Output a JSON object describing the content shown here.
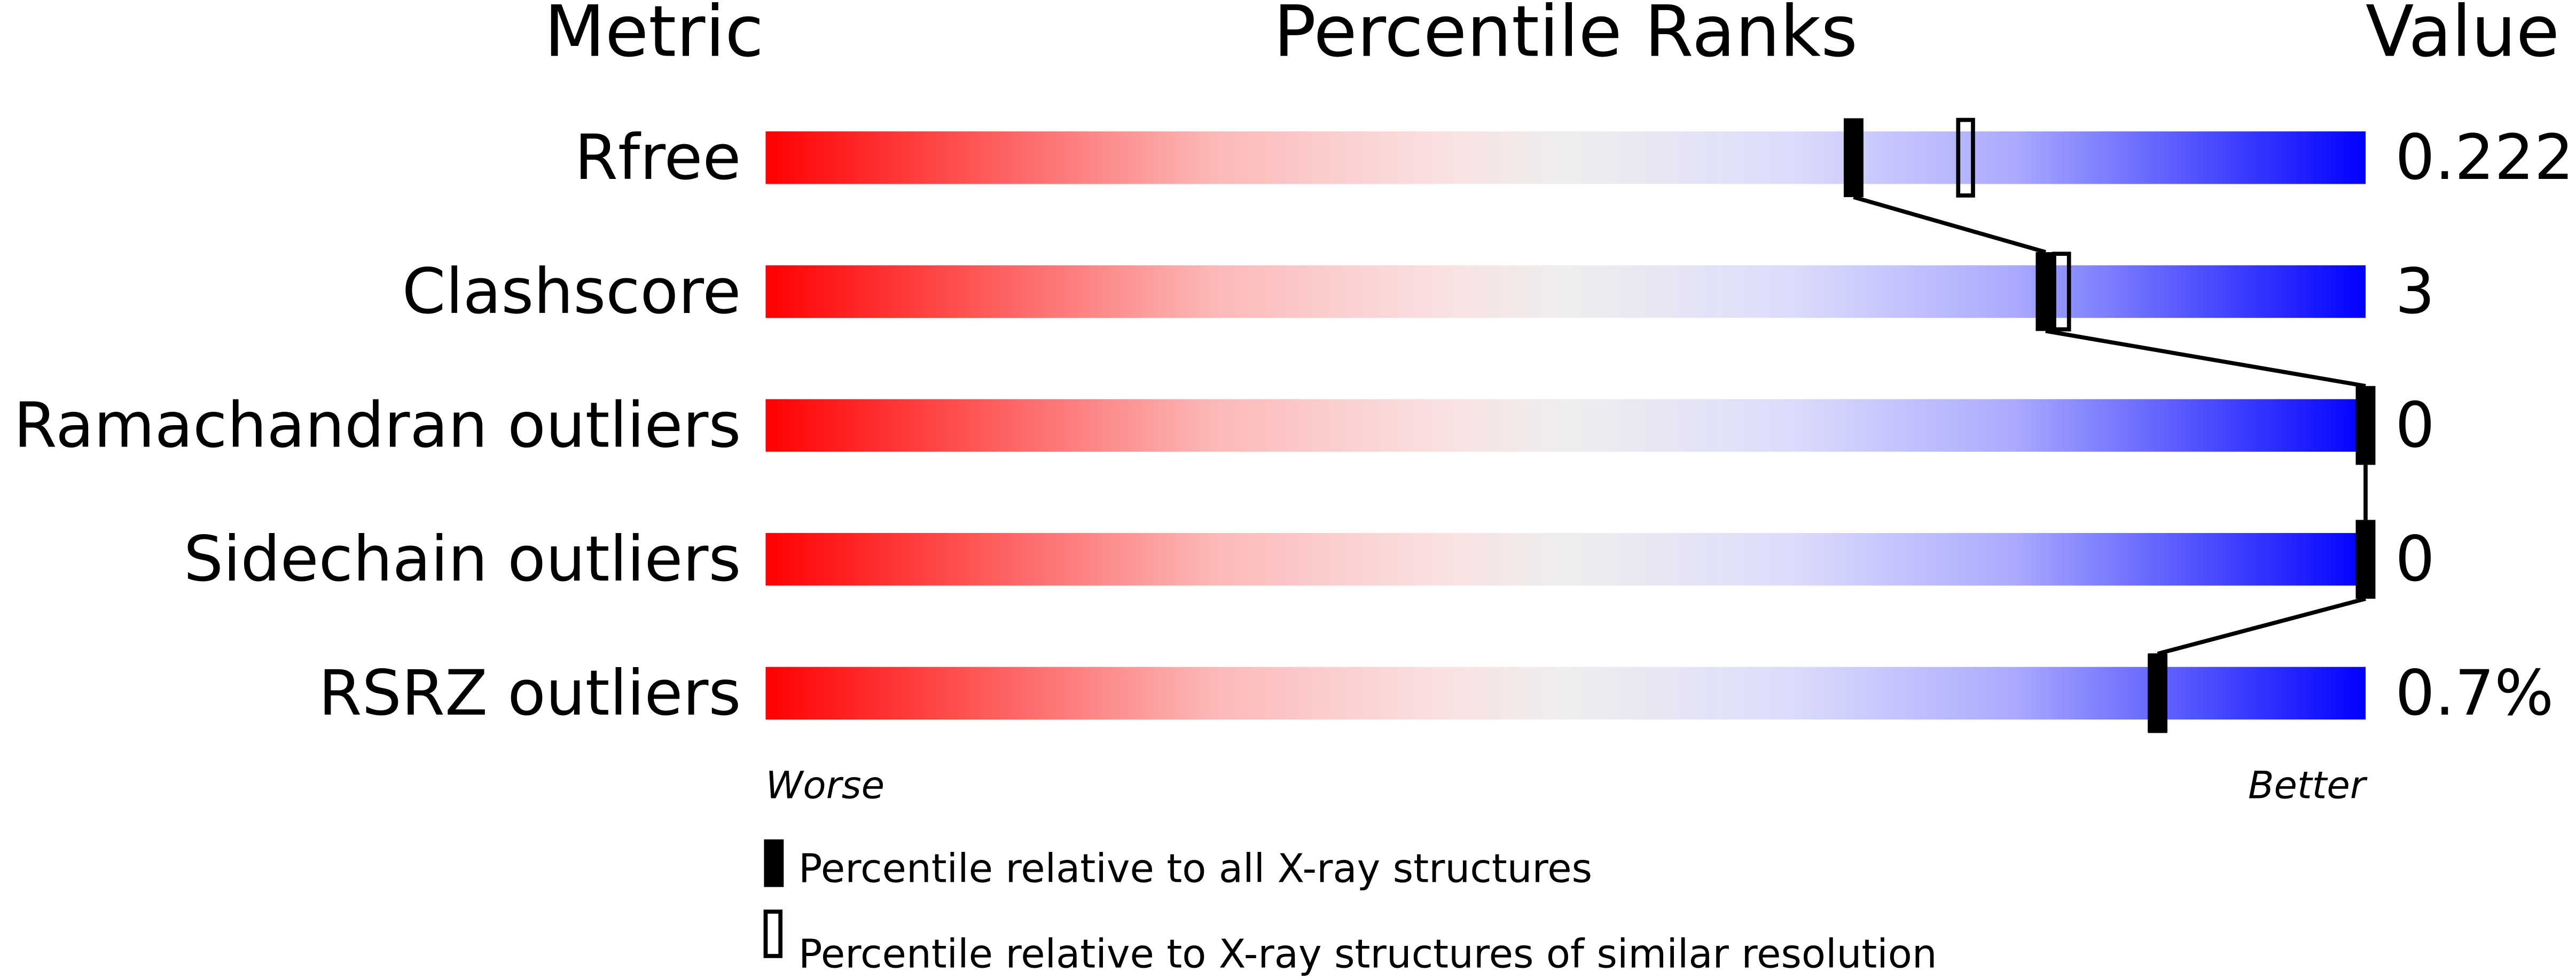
{
  "chart_data": {
    "type": "bar",
    "headers": {
      "metric": "Metric",
      "ranks": "Percentile Ranks",
      "value": "Value"
    },
    "xlim": [
      0,
      100
    ],
    "axis_labels": {
      "left": "Worse",
      "right": "Better"
    },
    "rows": [
      {
        "metric": "Rfree",
        "value": "0.222",
        "percentile_all": 68,
        "percentile_similar": 75
      },
      {
        "metric": "Clashscore",
        "value": "3",
        "percentile_all": 80,
        "percentile_similar": 81
      },
      {
        "metric": "Ramachandran outliers",
        "value": "0",
        "percentile_all": 100,
        "percentile_similar": null
      },
      {
        "metric": "Sidechain outliers",
        "value": "0",
        "percentile_all": 100,
        "percentile_similar": null
      },
      {
        "metric": "RSRZ outliers",
        "value": "0.7%",
        "percentile_all": 87,
        "percentile_similar": 87
      }
    ],
    "legend": {
      "all": "Percentile relative to all X-ray structures",
      "similar": "Percentile relative to X-ray structures of similar resolution"
    },
    "colors": {
      "worse": "#ff0000",
      "middle": "#eeeeee",
      "better": "#0000ff",
      "marker": "#000000"
    }
  }
}
